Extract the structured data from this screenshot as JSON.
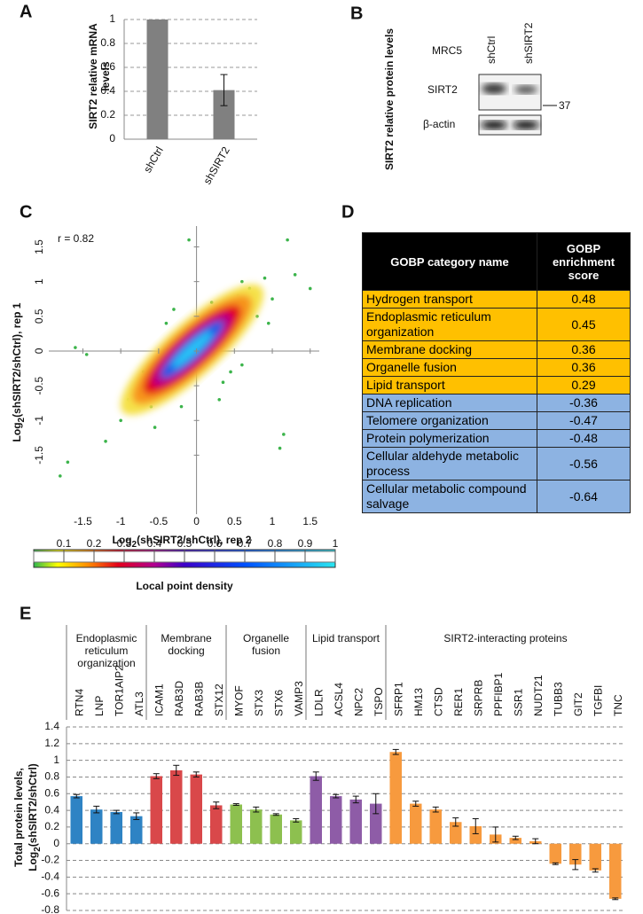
{
  "panel_labels": [
    "A",
    "B",
    "C",
    "D",
    "E"
  ],
  "chart_data": [
    {
      "type": "bar",
      "ylabel": "SIRT2 relative mRNA levels",
      "categories": [
        "shCtrl",
        "shSIRT2"
      ],
      "values": [
        1,
        0.41
      ],
      "errors": [
        null,
        0.13
      ],
      "color": "#808080",
      "ylim": [
        0,
        1
      ],
      "yticks": [
        0,
        0.2,
        0.4,
        0.6,
        0.8,
        1
      ],
      "grid": true
    },
    {
      "type": "density-scatter",
      "annotation": "r = 0.82",
      "xlabel": [
        "Log",
        "2",
        "(shSIRT2/shCtrl), rep 2"
      ],
      "ylabel": [
        "Log",
        "2",
        "(shSIRT2/shCtrl), rep 1"
      ],
      "x": [
        1.2,
        -0.1,
        1.5,
        0.9,
        -1.6,
        -1.45,
        -1.7,
        -1.8,
        1.1,
        1.15,
        -0.6,
        -0.8,
        0.7,
        0.6,
        0.35,
        -1.0,
        -0.9,
        0.8,
        1.0,
        -0.4,
        0.2,
        -0.2,
        0.45,
        -1.2,
        0.55,
        -0.7,
        0.3,
        1.3,
        -0.3,
        0.95,
        0.6,
        -0.55
      ],
      "y": [
        1.6,
        1.6,
        0.9,
        1.05,
        0.05,
        -0.05,
        -1.6,
        -1.8,
        -1.4,
        -1.2,
        -0.8,
        -0.6,
        0.9,
        1.0,
        -0.45,
        -1.0,
        -0.7,
        0.5,
        0.75,
        0.4,
        0.7,
        -0.8,
        -0.3,
        -1.3,
        0.8,
        -0.3,
        -0.7,
        1.1,
        0.6,
        0.4,
        -0.2,
        -1.1
      ],
      "color": "#3cb44b",
      "xlim": [
        -1.95,
        1.62
      ],
      "ylim": [
        -2.35,
        1.8
      ],
      "xticks": [
        -1.5,
        -1,
        -0.5,
        0,
        0.5,
        1,
        1.5
      ],
      "yticks": [
        -1.5,
        -1,
        -0.5,
        0,
        0.5,
        1,
        1.5
      ],
      "colorbar": {
        "label": "Local point density",
        "lim": [
          0,
          1
        ],
        "ticks": [
          0.1,
          0.2,
          0.3,
          0.4,
          0.5,
          0.6,
          0.7,
          0.8,
          0.9,
          1
        ]
      }
    },
    {
      "type": "grouped-bar",
      "ylabel": [
        "Total protein levels,",
        "Log",
        "2",
        "(shSIRT2/shCtrl)"
      ],
      "series": [
        {
          "name": "Endoplasmic reticulum organization",
          "color": "#2e83c4",
          "categories": [
            "RTN4",
            "LNP",
            "TOR1AIP2",
            "ATL3"
          ],
          "values": [
            0.57,
            0.41,
            0.38,
            0.33
          ],
          "errors": [
            0.02,
            0.04,
            0.02,
            0.04
          ]
        },
        {
          "name": "Membrane docking",
          "color": "#d9484a",
          "categories": [
            "ICAM1",
            "RAB3D",
            "RAB3B",
            "STX12"
          ],
          "values": [
            0.81,
            0.88,
            0.83,
            0.46
          ],
          "errors": [
            0.03,
            0.06,
            0.03,
            0.04
          ]
        },
        {
          "name": "Organelle fusion",
          "color": "#8dc04f",
          "categories": [
            "MYOF",
            "STX3",
            "STX6",
            "VAMP3"
          ],
          "values": [
            0.47,
            0.41,
            0.35,
            0.28
          ],
          "errors": [
            0.01,
            0.03,
            0.01,
            0.02
          ]
        },
        {
          "name": "Lipid transport",
          "color": "#8e5ca7",
          "categories": [
            "LDLR",
            "ACSL4",
            "NPC2",
            "TSPO"
          ],
          "values": [
            0.81,
            0.57,
            0.53,
            0.48
          ],
          "errors": [
            0.05,
            0.02,
            0.04,
            0.12
          ]
        },
        {
          "name": "SIRT2-interacting proteins",
          "color": "#f79a3e",
          "categories": [
            "SFRP1",
            "HM13",
            "CTSD",
            "RER1",
            "SRPRB",
            "PPFIBP1",
            "SSR1",
            "NUDT21",
            "TUBB3",
            "GIT2",
            "TGFBI",
            "TNC"
          ],
          "values": [
            1.1,
            0.48,
            0.41,
            0.26,
            0.21,
            0.11,
            0.07,
            0.03,
            -0.24,
            -0.25,
            -0.32,
            -0.66
          ],
          "errors": [
            0.03,
            0.03,
            0.03,
            0.05,
            0.09,
            0.09,
            0.02,
            0.03,
            0.01,
            0.06,
            0.02,
            0.01
          ]
        }
      ],
      "ylim": [
        -0.8,
        1.4
      ],
      "yticks": [
        -0.8,
        -0.6,
        -0.4,
        -0.2,
        0,
        0.2,
        0.4,
        0.6,
        0.8,
        1,
        1.2,
        1.4
      ],
      "grid": true
    }
  ],
  "western_blot": {
    "ylabel": "SIRT2 relative protein levels",
    "cell_line": "MRC5",
    "lanes": [
      "shCtrl",
      "shSIRT2"
    ],
    "bands": [
      "SIRT2",
      "β-actin"
    ],
    "marker": "37"
  },
  "table": {
    "header": [
      "GOBP category name",
      "GOBP enrichment score"
    ],
    "rows": [
      [
        "Hydrogen transport",
        0.48
      ],
      [
        "Endoplasmic reticulum organization",
        0.45
      ],
      [
        "Membrane docking",
        0.36
      ],
      [
        "Organelle fusion",
        0.36
      ],
      [
        "Lipid transport",
        0.29
      ],
      [
        "DNA replication",
        -0.36
      ],
      [
        "Telomere organization",
        -0.47
      ],
      [
        "Protein polymerization",
        -0.48
      ],
      [
        "Cellular aldehyde metabolic process",
        -0.56
      ],
      [
        "Cellular metabolic compound salvage",
        -0.64
      ]
    ],
    "positive_color": "#ffc000",
    "negative_color": "#8db3e2"
  }
}
